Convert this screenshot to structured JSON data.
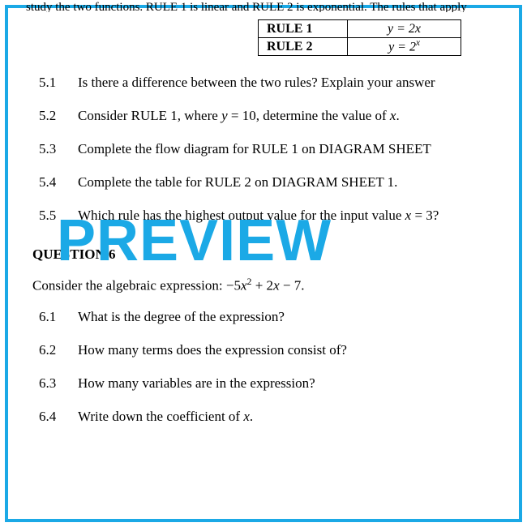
{
  "frame_color": "#1ba9e6",
  "watermark": "PREVIEW",
  "cutoff_text": "study the two functions. RULE 1 is linear and RULE 2 is exponential. The rules that apply",
  "rules_table": {
    "rows": [
      {
        "label": "RULE 1",
        "equation_html": "<span class='math-i'>y</span> = 2<span class='math-i'>x</span>"
      },
      {
        "label": "RULE 2",
        "equation_html": "<span class='math-i'>y</span> = 2<span class='sup'><span class='math-i'>x</span></span>"
      }
    ]
  },
  "q5": [
    {
      "n": "5.1",
      "html": "Is there a difference between the two rules? Explain your answer"
    },
    {
      "n": "5.2",
      "html": "Consider RULE 1, where <span class='math-i'>y</span> = 10, determine the value of <span class='math-i'>x</span>."
    },
    {
      "n": "5.3",
      "html": "Complete the flow diagram for RULE 1 on DIAGRAM SHEET"
    },
    {
      "n": "5.4",
      "html": "Complete the table for RULE 2 on DIAGRAM SHEET 1."
    },
    {
      "n": "5.5",
      "html": "Which rule has the highest output value for the input value <span class='math-i'>x</span> = 3?"
    }
  ],
  "q6": {
    "heading": "QUESTION 6",
    "lead_html": "Consider the algebraic expression: &minus;5<span class='math-i'>x</span><span class='sup'>2</span> + 2<span class='math-i'>x</span> &minus; 7.",
    "items": [
      {
        "n": "6.1",
        "html": "What is the degree of the expression?"
      },
      {
        "n": "6.2",
        "html": "How many terms does the expression consist of?"
      },
      {
        "n": "6.3",
        "html": "How many variables are in the expression?"
      },
      {
        "n": "6.4",
        "html": "Write down the coefficient of <span class='math-i'>x</span>."
      }
    ]
  }
}
